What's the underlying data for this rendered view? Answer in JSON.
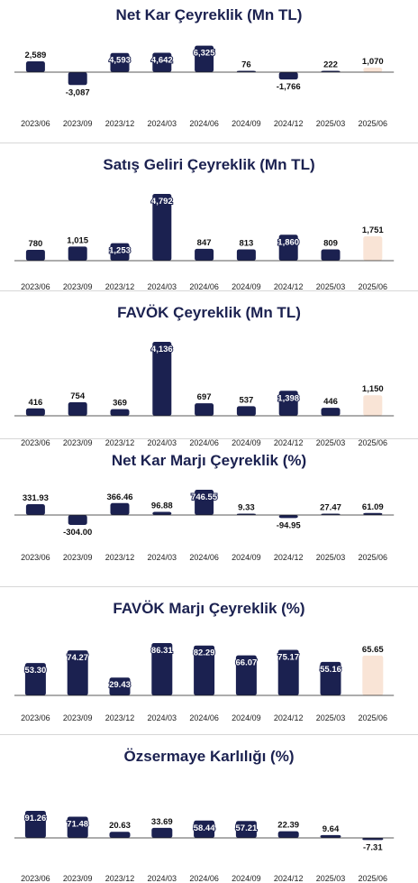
{
  "colors": {
    "bar": "#1b2150",
    "highlight": "#f9e4d6",
    "axis": "#222222"
  },
  "chart_data": [
    {
      "type": "bar",
      "title": "Net Kar Çeyreklik (Mn TL)",
      "categories": [
        "2023/06",
        "2023/09",
        "2023/12",
        "2024/03",
        "2024/06",
        "2024/09",
        "2024/12",
        "2025/03",
        "2025/06"
      ],
      "values": [
        2589,
        -3087,
        4593,
        4642,
        6325,
        76,
        -1766,
        222,
        1070
      ],
      "labels": [
        "2,589",
        "-3,087",
        "4,593",
        "4,642",
        "6,325",
        "76",
        "-1,766",
        "222",
        "1,070"
      ],
      "highlight_last": true
    },
    {
      "type": "bar",
      "title": "Satış Geliri Çeyreklik (Mn TL)",
      "categories": [
        "2023/06",
        "2023/09",
        "2023/12",
        "2024/03",
        "2024/06",
        "2024/09",
        "2024/12",
        "2025/03",
        "2025/06"
      ],
      "values": [
        780,
        1015,
        1253,
        4792,
        847,
        813,
        1860,
        809,
        1751
      ],
      "labels": [
        "780",
        "1,015",
        "1,253",
        "4,792",
        "847",
        "813",
        "1,860",
        "809",
        "1,751"
      ],
      "highlight_last": true
    },
    {
      "type": "bar",
      "title": "FAVÖK Çeyreklik (Mn TL)",
      "categories": [
        "2023/06",
        "2023/09",
        "2023/12",
        "2024/03",
        "2024/06",
        "2024/09",
        "2024/12",
        "2025/03",
        "2025/06"
      ],
      "values": [
        416,
        754,
        369,
        4136,
        697,
        537,
        1398,
        446,
        1150
      ],
      "labels": [
        "416",
        "754",
        "369",
        "4,136",
        "697",
        "537",
        "1,398",
        "446",
        "1,150"
      ],
      "highlight_last": true
    },
    {
      "type": "bar",
      "title": "Net Kar Marjı Çeyreklik (%)",
      "categories": [
        "2023/06",
        "2023/09",
        "2023/12",
        "2024/03",
        "2024/06",
        "2024/09",
        "2024/12",
        "2025/03",
        "2025/06"
      ],
      "values": [
        331.93,
        -304.0,
        366.46,
        96.88,
        746.55,
        9.33,
        -94.95,
        27.47,
        61.09
      ],
      "labels": [
        "331.93",
        "-304.00",
        "366.46",
        "96.88",
        "746.55",
        "9.33",
        "-94.95",
        "27.47",
        "61.09"
      ],
      "highlight_last": false
    },
    {
      "type": "bar",
      "title": "FAVÖK Marjı Çeyreklik (%)",
      "categories": [
        "2023/06",
        "2023/09",
        "2023/12",
        "2024/03",
        "2024/06",
        "2024/09",
        "2024/12",
        "2025/03",
        "2025/06"
      ],
      "values": [
        53.3,
        74.27,
        29.43,
        86.31,
        82.29,
        66.07,
        75.17,
        55.16,
        65.65
      ],
      "labels": [
        "53.30",
        "74.27",
        "29.43",
        "86.31",
        "82.29",
        "66.07",
        "75.17",
        "55.16",
        "65.65"
      ],
      "highlight_last": true
    },
    {
      "type": "bar",
      "title": "Özsermaye Karlılığı (%)",
      "categories": [
        "2023/06",
        "2023/09",
        "2023/12",
        "2024/03",
        "2024/06",
        "2024/09",
        "2024/12",
        "2025/03",
        "2025/06"
      ],
      "values": [
        91.26,
        71.48,
        20.63,
        33.69,
        58.44,
        57.21,
        22.39,
        9.64,
        -7.31
      ],
      "labels": [
        "91.26",
        "71.48",
        "20.63",
        "33.69",
        "58.44",
        "57.21",
        "22.39",
        "9.64",
        "-7.31"
      ],
      "highlight_last": false
    }
  ]
}
